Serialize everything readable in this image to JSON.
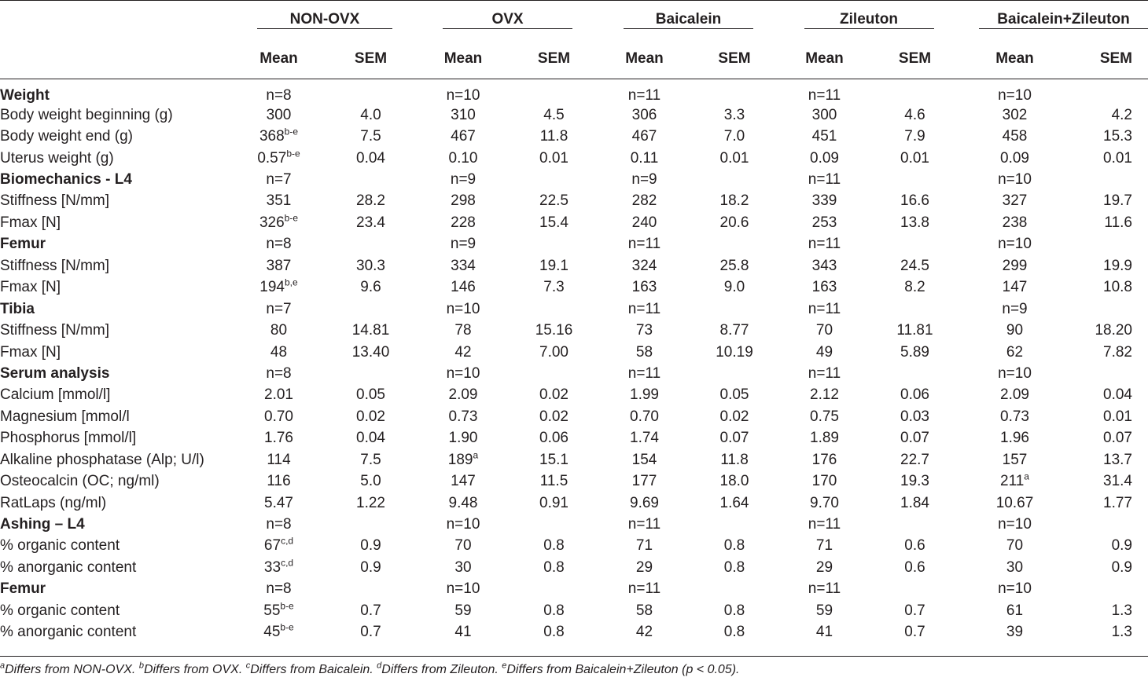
{
  "groups": [
    "NON-OVX",
    "OVX",
    "Baicalein",
    "Zileuton",
    "Baicalein+Zileuton"
  ],
  "sub_headers": {
    "mean": "Mean",
    "sem": "SEM"
  },
  "rows": [
    {
      "type": "section",
      "label": "Weight",
      "n": [
        "n=8",
        "n=10",
        "n=11",
        "n=11",
        "n=10"
      ]
    },
    {
      "type": "data",
      "label": "Body weight beginning (g)",
      "cells": [
        {
          "m": "300",
          "s": "4.0"
        },
        {
          "m": "310",
          "s": "4.5"
        },
        {
          "m": "306",
          "s": "3.3"
        },
        {
          "m": "300",
          "s": "4.6"
        },
        {
          "m": "302",
          "s": "4.2"
        }
      ]
    },
    {
      "type": "data",
      "label": "Body weight end (g)",
      "cells": [
        {
          "m": "368",
          "sup": "b-e",
          "s": "7.5"
        },
        {
          "m": "467",
          "s": "11.8"
        },
        {
          "m": "467",
          "s": "7.0"
        },
        {
          "m": "451",
          "s": "7.9"
        },
        {
          "m": "458",
          "s": "15.3"
        }
      ]
    },
    {
      "type": "data",
      "label": "Uterus weight (g)",
      "cells": [
        {
          "m": "0.57",
          "sup": "b-e",
          "s": "0.04"
        },
        {
          "m": "0.10",
          "s": "0.01"
        },
        {
          "m": "0.11",
          "s": "0.01"
        },
        {
          "m": "0.09",
          "s": "0.01"
        },
        {
          "m": "0.09",
          "s": "0.01"
        }
      ]
    },
    {
      "type": "section",
      "label": "Biomechanics - L4",
      "n": [
        "n=7",
        "n=9",
        "n=9",
        "n=11",
        "n=10"
      ]
    },
    {
      "type": "data",
      "label": "Stiffness [N/mm]",
      "cells": [
        {
          "m": "351",
          "s": "28.2"
        },
        {
          "m": "298",
          "s": "22.5"
        },
        {
          "m": "282",
          "s": "18.2"
        },
        {
          "m": "339",
          "s": "16.6"
        },
        {
          "m": "327",
          "s": "19.7"
        }
      ]
    },
    {
      "type": "data",
      "label": "Fmax [N]",
      "cells": [
        {
          "m": "326",
          "sup": "b-e",
          "s": "23.4"
        },
        {
          "m": "228",
          "s": "15.4"
        },
        {
          "m": "240",
          "s": "20.6"
        },
        {
          "m": "253",
          "s": "13.8"
        },
        {
          "m": "238",
          "s": "11.6"
        }
      ]
    },
    {
      "type": "section",
      "label": "Femur",
      "n": [
        "n=8",
        "n=9",
        "n=11",
        "n=11",
        "n=10"
      ]
    },
    {
      "type": "data",
      "label": "Stiffness [N/mm]",
      "cells": [
        {
          "m": "387",
          "s": "30.3"
        },
        {
          "m": "334",
          "s": "19.1"
        },
        {
          "m": "324",
          "s": "25.8"
        },
        {
          "m": "343",
          "s": "24.5"
        },
        {
          "m": "299",
          "s": "19.9"
        }
      ]
    },
    {
      "type": "data",
      "label": "Fmax [N]",
      "cells": [
        {
          "m": "194",
          "sup": "b,e",
          "s": "9.6"
        },
        {
          "m": "146",
          "s": "7.3"
        },
        {
          "m": "163",
          "s": "9.0"
        },
        {
          "m": "163",
          "s": "8.2"
        },
        {
          "m": "147",
          "s": "10.8"
        }
      ]
    },
    {
      "type": "section",
      "label": "Tibia",
      "n": [
        "n=7",
        "n=10",
        "n=11",
        "n=11",
        "n=9"
      ]
    },
    {
      "type": "data",
      "label": "Stiffness [N/mm]",
      "cells": [
        {
          "m": "80",
          "s": "14.81"
        },
        {
          "m": "78",
          "s": "15.16"
        },
        {
          "m": "73",
          "s": "8.77"
        },
        {
          "m": "70",
          "s": "11.81"
        },
        {
          "m": "90",
          "s": "18.20"
        }
      ]
    },
    {
      "type": "data",
      "label": "Fmax [N]",
      "cells": [
        {
          "m": "48",
          "s": "13.40"
        },
        {
          "m": "42",
          "s": "7.00"
        },
        {
          "m": "58",
          "s": "10.19"
        },
        {
          "m": "49",
          "s": "5.89"
        },
        {
          "m": "62",
          "s": "7.82"
        }
      ]
    },
    {
      "type": "section",
      "label": "Serum analysis",
      "n": [
        "n=8",
        "n=10",
        "n=11",
        "n=11",
        "n=10"
      ]
    },
    {
      "type": "data",
      "label": "Calcium [mmol/l]",
      "cells": [
        {
          "m": "2.01",
          "s": "0.05"
        },
        {
          "m": "2.09",
          "s": "0.02"
        },
        {
          "m": "1.99",
          "s": "0.05"
        },
        {
          "m": "2.12",
          "s": "0.06"
        },
        {
          "m": "2.09",
          "s": "0.04"
        }
      ]
    },
    {
      "type": "data",
      "label": "Magnesium [mmol/l",
      "cells": [
        {
          "m": "0.70",
          "s": "0.02"
        },
        {
          "m": "0.73",
          "s": "0.02"
        },
        {
          "m": "0.70",
          "s": "0.02"
        },
        {
          "m": "0.75",
          "s": "0.03"
        },
        {
          "m": "0.73",
          "s": "0.01"
        }
      ]
    },
    {
      "type": "data",
      "label": "Phosphorus [mmol/l]",
      "cells": [
        {
          "m": "1.76",
          "s": "0.04"
        },
        {
          "m": "1.90",
          "s": "0.06"
        },
        {
          "m": "1.74",
          "s": "0.07"
        },
        {
          "m": "1.89",
          "s": "0.07"
        },
        {
          "m": "1.96",
          "s": "0.07"
        }
      ]
    },
    {
      "type": "data",
      "label": "Alkaline phosphatase (Alp; U/l)",
      "cells": [
        {
          "m": "114",
          "s": "7.5"
        },
        {
          "m": "189",
          "sup": "a",
          "s": "15.1"
        },
        {
          "m": "154",
          "s": "11.8"
        },
        {
          "m": "176",
          "s": "22.7"
        },
        {
          "m": "157",
          "s": "13.7"
        }
      ]
    },
    {
      "type": "data",
      "label": "Osteocalcin (OC; ng/ml)",
      "cells": [
        {
          "m": "116",
          "s": "5.0"
        },
        {
          "m": "147",
          "s": "11.5"
        },
        {
          "m": "177",
          "s": "18.0"
        },
        {
          "m": "170",
          "s": "19.3"
        },
        {
          "m": "211",
          "sup": "a",
          "s": "31.4"
        }
      ]
    },
    {
      "type": "data",
      "label": "RatLaps (ng/ml)",
      "cells": [
        {
          "m": "5.47",
          "s": "1.22"
        },
        {
          "m": "9.48",
          "s": "0.91"
        },
        {
          "m": "9.69",
          "s": "1.64"
        },
        {
          "m": "9.70",
          "s": "1.84"
        },
        {
          "m": "10.67",
          "s": "1.77"
        }
      ]
    },
    {
      "type": "section",
      "label": "Ashing – L4",
      "n": [
        "n=8",
        "n=10",
        "n=11",
        "n=11",
        "n=10"
      ]
    },
    {
      "type": "data",
      "label": "% organic content",
      "cells": [
        {
          "m": "67",
          "sup": "c,d",
          "s": "0.9"
        },
        {
          "m": "70",
          "s": "0.8"
        },
        {
          "m": "71",
          "s": "0.8"
        },
        {
          "m": "71",
          "s": "0.6"
        },
        {
          "m": "70",
          "s": "0.9"
        }
      ]
    },
    {
      "type": "data",
      "label": "% anorganic content",
      "cells": [
        {
          "m": "33",
          "sup": "c,d",
          "s": "0.9"
        },
        {
          "m": "30",
          "s": "0.8"
        },
        {
          "m": "29",
          "s": "0.8"
        },
        {
          "m": "29",
          "s": "0.6"
        },
        {
          "m": "30",
          "s": "0.9"
        }
      ]
    },
    {
      "type": "section",
      "label": "Femur",
      "n": [
        "n=8",
        "n=10",
        "n=11",
        "n=11",
        "n=10"
      ]
    },
    {
      "type": "data",
      "label": "% organic content",
      "cells": [
        {
          "m": "55",
          "sup": "b-e",
          "s": "0.7"
        },
        {
          "m": "59",
          "s": "0.8"
        },
        {
          "m": "58",
          "s": "0.8"
        },
        {
          "m": "59",
          "s": "0.7"
        },
        {
          "m": "61",
          "s": "1.3"
        }
      ]
    },
    {
      "type": "data",
      "label": "% anorganic content",
      "cells": [
        {
          "m": "45",
          "sup": "b-e",
          "s": "0.7"
        },
        {
          "m": "41",
          "s": "0.8"
        },
        {
          "m": "42",
          "s": "0.8"
        },
        {
          "m": "41",
          "s": "0.7"
        },
        {
          "m": "39",
          "s": "1.3"
        }
      ]
    }
  ],
  "footnote": [
    {
      "sup": "a",
      "text": "Differs from NON-OVX. "
    },
    {
      "sup": "b",
      "text": "Differs from OVX. "
    },
    {
      "sup": "c",
      "text": "Differs from Baicalein. "
    },
    {
      "sup": "d",
      "text": "Differs from Zileuton. "
    },
    {
      "sup": "e",
      "text": "Differs from Baicalein+Zileuton (p < 0.05)."
    }
  ]
}
